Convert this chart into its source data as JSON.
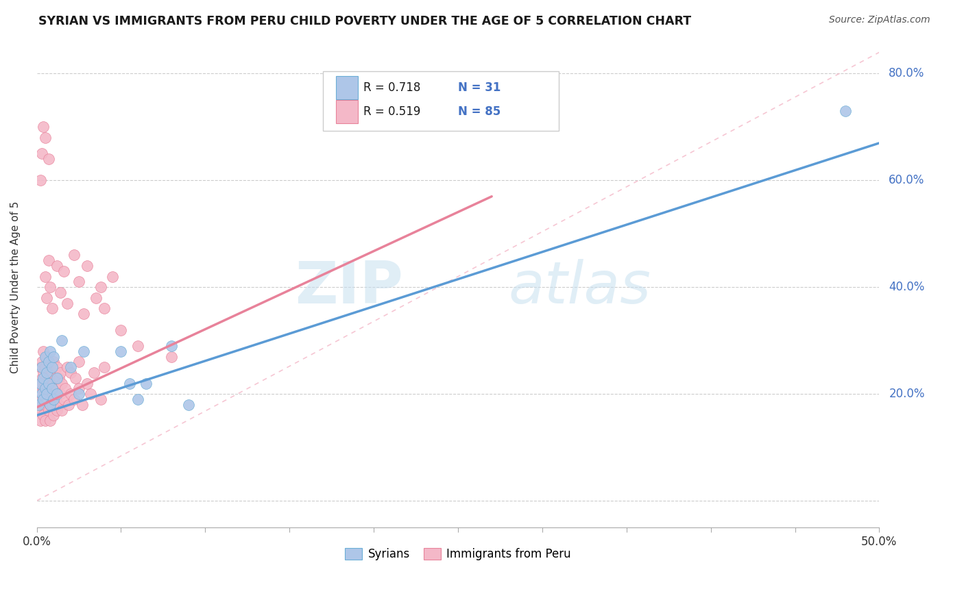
{
  "title": "SYRIAN VS IMMIGRANTS FROM PERU CHILD POVERTY UNDER THE AGE OF 5 CORRELATION CHART",
  "source": "Source: ZipAtlas.com",
  "ylabel": "Child Poverty Under the Age of 5",
  "xlim": [
    0.0,
    0.5
  ],
  "ylim": [
    -0.05,
    0.85
  ],
  "xticks": [
    0.0,
    0.05,
    0.1,
    0.15,
    0.2,
    0.25,
    0.3,
    0.35,
    0.4,
    0.45,
    0.5
  ],
  "ytick_positions": [
    0.0,
    0.2,
    0.4,
    0.6,
    0.8
  ],
  "ytick_labels": [
    "",
    "20.0%",
    "40.0%",
    "60.0%",
    "80.0%"
  ],
  "syrian_fill_color": "#aec6e8",
  "syrian_edge_color": "#6baed6",
  "peru_fill_color": "#f4b8c8",
  "peru_edge_color": "#e8829a",
  "syrian_line_color": "#5b9bd5",
  "peru_line_color": "#e8829a",
  "diag_line_color": "#f4b8c8",
  "R_syrian": 0.718,
  "N_syrian": 31,
  "R_peru": 0.519,
  "N_peru": 85,
  "watermark_zip": "ZIP",
  "watermark_atlas": "atlas",
  "legend_syrians": "Syrians",
  "legend_peru": "Immigrants from Peru",
  "syrian_scatter_x": [
    0.001,
    0.002,
    0.003,
    0.003,
    0.004,
    0.004,
    0.005,
    0.005,
    0.006,
    0.006,
    0.007,
    0.007,
    0.008,
    0.008,
    0.009,
    0.009,
    0.01,
    0.01,
    0.012,
    0.012,
    0.015,
    0.02,
    0.025,
    0.028,
    0.05,
    0.055,
    0.06,
    0.065,
    0.08,
    0.09,
    0.48
  ],
  "syrian_scatter_y": [
    0.18,
    0.22,
    0.2,
    0.25,
    0.19,
    0.23,
    0.21,
    0.27,
    0.24,
    0.2,
    0.26,
    0.22,
    0.28,
    0.18,
    0.25,
    0.21,
    0.27,
    0.19,
    0.23,
    0.2,
    0.3,
    0.25,
    0.2,
    0.28,
    0.28,
    0.22,
    0.19,
    0.22,
    0.29,
    0.18,
    0.73
  ],
  "peru_scatter_x": [
    0.001,
    0.001,
    0.002,
    0.002,
    0.002,
    0.003,
    0.003,
    0.003,
    0.003,
    0.004,
    0.004,
    0.004,
    0.004,
    0.005,
    0.005,
    0.005,
    0.005,
    0.005,
    0.006,
    0.006,
    0.006,
    0.007,
    0.007,
    0.007,
    0.008,
    0.008,
    0.008,
    0.009,
    0.009,
    0.009,
    0.01,
    0.01,
    0.01,
    0.011,
    0.011,
    0.012,
    0.012,
    0.012,
    0.013,
    0.013,
    0.014,
    0.014,
    0.015,
    0.015,
    0.016,
    0.017,
    0.018,
    0.019,
    0.02,
    0.02,
    0.022,
    0.023,
    0.025,
    0.025,
    0.027,
    0.03,
    0.032,
    0.034,
    0.038,
    0.04,
    0.005,
    0.006,
    0.007,
    0.008,
    0.009,
    0.012,
    0.014,
    0.016,
    0.018,
    0.022,
    0.025,
    0.028,
    0.03,
    0.035,
    0.038,
    0.04,
    0.045,
    0.05,
    0.06,
    0.08,
    0.002,
    0.003,
    0.004,
    0.005,
    0.007
  ],
  "peru_scatter_y": [
    0.18,
    0.22,
    0.2,
    0.25,
    0.15,
    0.19,
    0.23,
    0.17,
    0.26,
    0.21,
    0.16,
    0.24,
    0.28,
    0.18,
    0.22,
    0.15,
    0.25,
    0.2,
    0.19,
    0.23,
    0.27,
    0.17,
    0.21,
    0.26,
    0.18,
    0.23,
    0.15,
    0.2,
    0.24,
    0.18,
    0.22,
    0.16,
    0.26,
    0.19,
    0.23,
    0.17,
    0.21,
    0.25,
    0.18,
    0.23,
    0.2,
    0.24,
    0.17,
    0.22,
    0.19,
    0.21,
    0.25,
    0.18,
    0.2,
    0.24,
    0.19,
    0.23,
    0.21,
    0.26,
    0.18,
    0.22,
    0.2,
    0.24,
    0.19,
    0.25,
    0.42,
    0.38,
    0.45,
    0.4,
    0.36,
    0.44,
    0.39,
    0.43,
    0.37,
    0.46,
    0.41,
    0.35,
    0.44,
    0.38,
    0.4,
    0.36,
    0.42,
    0.32,
    0.29,
    0.27,
    0.6,
    0.65,
    0.7,
    0.68,
    0.64
  ],
  "syrian_line_x": [
    0.0,
    0.5
  ],
  "syrian_line_y": [
    0.16,
    0.67
  ],
  "peru_line_x": [
    0.0,
    0.27
  ],
  "peru_line_y": [
    0.175,
    0.57
  ],
  "diag_line_x": [
    0.0,
    0.5
  ],
  "diag_line_y": [
    0.0,
    0.84
  ]
}
